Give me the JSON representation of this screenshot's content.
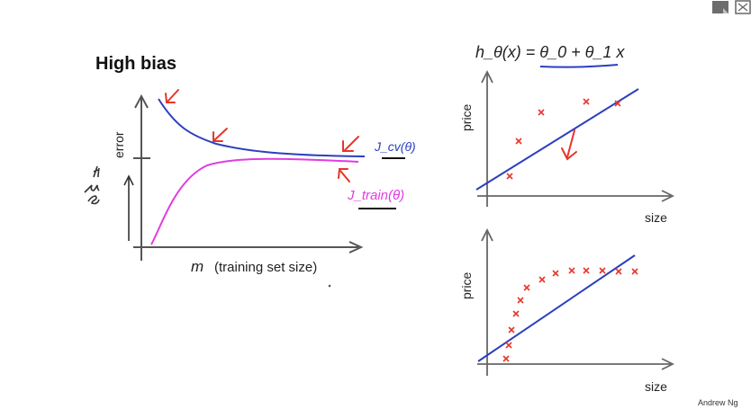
{
  "slide": {
    "title": "High bias",
    "credit": "Andrew Ng",
    "learning_curve": {
      "x_label_symbol": "m",
      "x_label_text": "(training set size)",
      "y_label": "error",
      "cv_label": "J_cv(θ)",
      "train_label": "J_train(θ)",
      "handwritten_note": "high error",
      "colors": {
        "cv": "#2b3fbf",
        "train": "#e23be0",
        "arrow": "#e8352a",
        "axis": "#555555"
      }
    },
    "hypothesis": "h_θ(x) = θ_0 + θ_1 x",
    "top_plot": {
      "ylabel": "price",
      "xlabel": "size"
    },
    "bottom_plot": {
      "ylabel": "price",
      "xlabel": "size"
    }
  },
  "toolbar": {
    "icons": [
      "note-icon",
      "expand-icon"
    ]
  }
}
